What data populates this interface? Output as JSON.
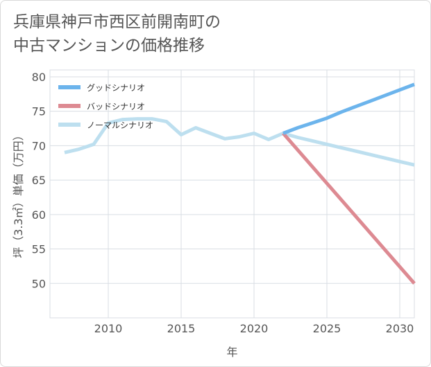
{
  "title_lines": [
    "兵庫県神戸市西区前開南町の",
    "中古マンションの価格推移"
  ],
  "chart_data": {
    "type": "line",
    "xlabel": "年",
    "ylabel": "坪（3.3㎡）単価（万円）",
    "xlim": [
      2006,
      2031
    ],
    "ylim": [
      45,
      81
    ],
    "xticks": [
      2010,
      2015,
      2020,
      2025,
      2030
    ],
    "yticks": [
      50,
      55,
      60,
      65,
      70,
      75,
      80
    ],
    "grid": true,
    "legend_position": "top-left",
    "series": [
      {
        "name": "グッドシナリオ",
        "color": "#6cb4ec",
        "x": [
          2022,
          2023,
          2024,
          2025,
          2026,
          2027,
          2028,
          2029,
          2030,
          2031
        ],
        "y": [
          71.8,
          72.6,
          73.3,
          74.0,
          74.9,
          75.7,
          76.5,
          77.3,
          78.1,
          78.9
        ]
      },
      {
        "name": "バッドシナリオ",
        "color": "#dd8a92",
        "x": [
          2022,
          2031
        ],
        "y": [
          71.8,
          50.0
        ]
      },
      {
        "name": "ノーマルシナリオ",
        "color": "#bddfef",
        "x": [
          2007,
          2008,
          2009,
          2010,
          2011,
          2012,
          2013,
          2014,
          2015,
          2016,
          2017,
          2018,
          2019,
          2020,
          2021,
          2022,
          2023,
          2024,
          2025,
          2026,
          2027,
          2028,
          2029,
          2030,
          2031
        ],
        "y": [
          69.0,
          69.5,
          70.2,
          73.3,
          73.8,
          73.9,
          73.9,
          73.5,
          71.6,
          72.6,
          71.8,
          71.0,
          71.3,
          71.8,
          70.9,
          71.8,
          71.2,
          70.7,
          70.2,
          69.7,
          69.2,
          68.7,
          68.2,
          67.7,
          67.2
        ]
      }
    ]
  }
}
